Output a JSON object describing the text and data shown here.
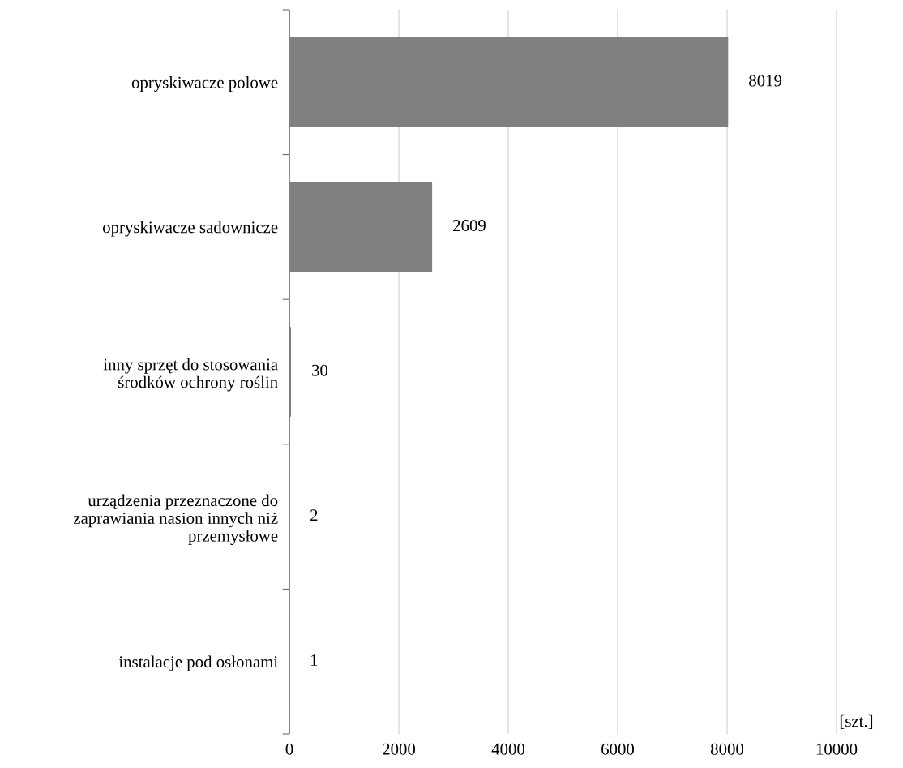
{
  "chart_data": {
    "type": "bar",
    "orientation": "horizontal",
    "xlabel": "[szt.]",
    "categories": [
      "opryskiwacze polowe",
      "opryskiwacze sadownicze",
      "inny sprzęt do stosowania\nśrodków ochrony roślin",
      "urządzenia przeznaczone do\nzaprawiania nasion innych niż\nprzemysłowe",
      "instalacje pod osłonami"
    ],
    "values": [
      8019,
      2609,
      30,
      2,
      1
    ],
    "color": "#808080",
    "data_labels": true,
    "xlim": [
      0,
      10000
    ],
    "xticks": [
      0,
      2000,
      4000,
      6000,
      8000,
      10000
    ],
    "grid": "x"
  }
}
